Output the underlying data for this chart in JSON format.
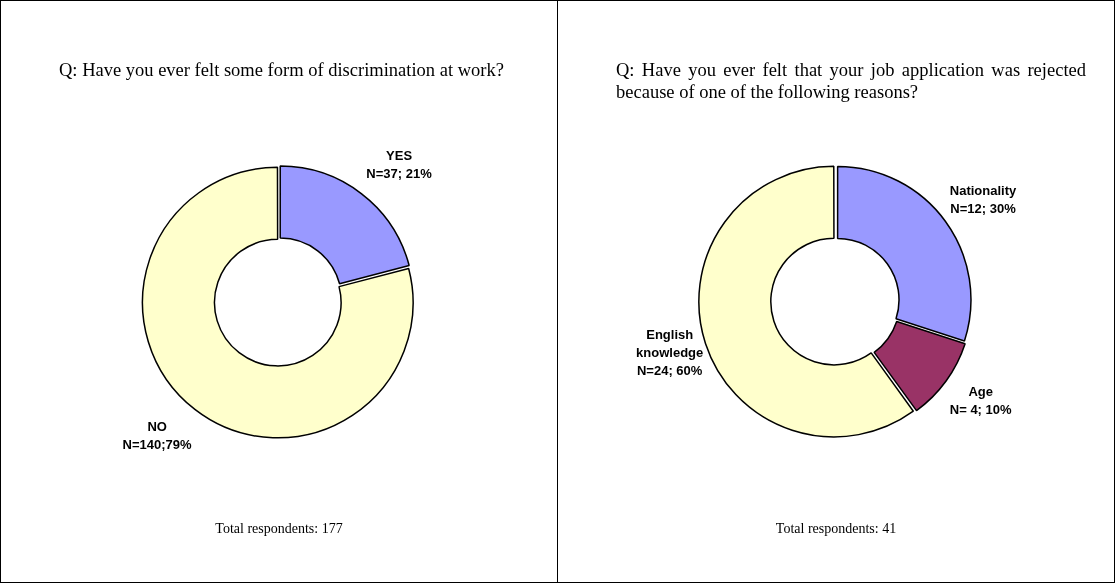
{
  "chart_data": [
    {
      "type": "donut",
      "title": "Q: Have you ever felt some form of discrimination at work?",
      "categories": [
        "YES",
        "NO"
      ],
      "values": [
        37,
        140
      ],
      "colors": [
        "#9999ff",
        "#ffffcc"
      ],
      "value_labels": [
        "N=37; 21%",
        "N=140;79%"
      ],
      "annotations": [
        "Total respondents: 177"
      ]
    },
    {
      "type": "donut",
      "title": "Q: Have you ever felt that your job application was rejected because of one of the following reasons?",
      "categories": [
        "Nationality",
        "Age",
        "English knowledge"
      ],
      "values": [
        12,
        4,
        24
      ],
      "colors": [
        "#9999ff",
        "#993366",
        "#ffffcc"
      ],
      "value_labels": [
        "N=12; 30%",
        "N= 4; 10%",
        "N=24; 60%"
      ],
      "annotations": [
        "Total respondents: 41"
      ]
    }
  ]
}
